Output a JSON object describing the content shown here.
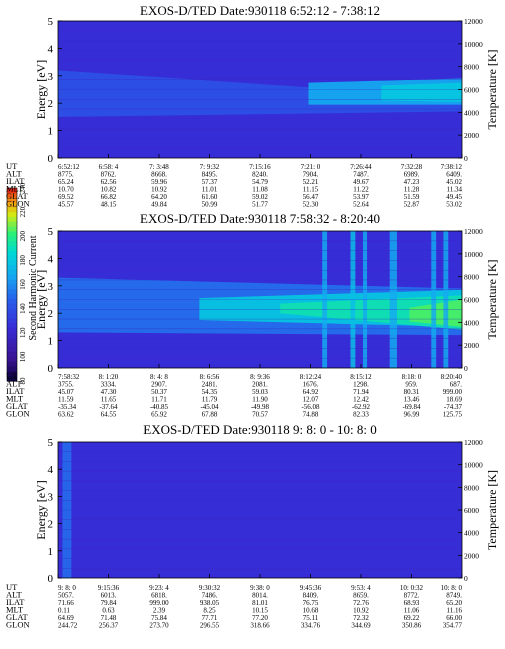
{
  "colorbar": {
    "label": "Second Harmonic Current",
    "ticks": [
      "240",
      "220",
      "200",
      "180",
      "160",
      "140",
      "120",
      "100",
      "80"
    ]
  },
  "chart_data": [
    {
      "type": "heatmap",
      "title": "EXOS-D/TED   Date:930118   6:52:12 - 7:38:12",
      "ylabel": "Energy [eV]",
      "y2label": "Temperature [K]",
      "ylim": [
        0,
        5
      ],
      "y2lim": [
        0,
        12000
      ],
      "yticks": [
        "0",
        "1",
        "2",
        "3",
        "4",
        "5"
      ],
      "y2ticks": [
        "0",
        "2000",
        "4000",
        "6000",
        "8000",
        "10000",
        "12000"
      ],
      "features": [
        {
          "kind": "band",
          "from": 0.0,
          "to": 1.0,
          "y_lo_start": 1.5,
          "y_lo_end": 1.7,
          "y_hi_start": 3.2,
          "y_hi_end": 2.2,
          "level": 0.38
        },
        {
          "kind": "band",
          "from": 0.62,
          "to": 1.0,
          "y_lo_start": 1.95,
          "y_lo_end": 1.95,
          "y_hi_start": 2.75,
          "y_hi_end": 2.9,
          "level": 0.55
        },
        {
          "kind": "band",
          "from": 0.8,
          "to": 1.0,
          "y_lo_start": 2.1,
          "y_lo_end": 2.05,
          "y_hi_start": 2.65,
          "y_hi_end": 2.75,
          "level": 0.62
        }
      ],
      "table": {
        "labels": [
          "UT",
          "ALT",
          "ILAT",
          "MLT",
          "GLAT",
          "GLON"
        ],
        "columns": [
          [
            "6:52:12",
            "8775.",
            "65.24",
            "10.70",
            "69.52",
            "45.57"
          ],
          [
            "6:58: 4",
            "8762.",
            "62.56",
            "10.82",
            "66.82",
            "48.15"
          ],
          [
            "7: 3:48",
            "8668.",
            "59.96",
            "10.92",
            "64.20",
            "49.84"
          ],
          [
            "7: 9:32",
            "8495.",
            "57.37",
            "11.01",
            "61.60",
            "50.99"
          ],
          [
            "7:15:16",
            "8240.",
            "54.79",
            "11.08",
            "59.02",
            "51.77"
          ],
          [
            "7:21: 0",
            "7904.",
            "52.21",
            "11.15",
            "56.47",
            "52.30"
          ],
          [
            "7:26:44",
            "7487.",
            "49.67",
            "11.22",
            "53.97",
            "52.64"
          ],
          [
            "7:32:28",
            "6989.",
            "47.23",
            "11.28",
            "51.59",
            "52.87"
          ],
          [
            "7:38:12",
            "6409.",
            "45.02",
            "11.34",
            "49.45",
            "53.02"
          ]
        ]
      }
    },
    {
      "type": "heatmap",
      "title": "EXOS-D/TED   Date:930118   7:58:32 - 8:20:40",
      "ylabel": "Energy [eV]",
      "y2label": "Temperature [K]",
      "ylim": [
        0,
        5
      ],
      "y2lim": [
        0,
        12000
      ],
      "yticks": [
        "0",
        "1",
        "2",
        "3",
        "4",
        "5"
      ],
      "y2ticks": [
        "0",
        "2000",
        "4000",
        "6000",
        "8000",
        "10000",
        "12000"
      ],
      "features": [
        {
          "kind": "band",
          "from": 0.0,
          "to": 1.0,
          "y_lo_start": 1.3,
          "y_lo_end": 1.2,
          "y_hi_start": 3.3,
          "y_hi_end": 2.9,
          "level": 0.45
        },
        {
          "kind": "band",
          "from": 0.35,
          "to": 1.0,
          "y_lo_start": 1.75,
          "y_lo_end": 1.5,
          "y_hi_start": 2.55,
          "y_hi_end": 2.85,
          "level": 0.62
        },
        {
          "kind": "band",
          "from": 0.55,
          "to": 1.0,
          "y_lo_start": 2.0,
          "y_lo_end": 1.4,
          "y_hi_start": 2.35,
          "y_hi_end": 2.65,
          "level": 0.7
        },
        {
          "kind": "band",
          "from": 0.87,
          "to": 1.0,
          "y_lo_start": 1.7,
          "y_lo_end": 1.5,
          "y_hi_start": 2.2,
          "y_hi_end": 2.5,
          "level": 0.78
        },
        {
          "kind": "stripe",
          "at": 0.66,
          "width": 0.012,
          "y_lo": 0.0,
          "y_hi": 5.0,
          "level": 0.55
        },
        {
          "kind": "stripe",
          "at": 0.73,
          "width": 0.012,
          "y_lo": 0.0,
          "y_hi": 5.0,
          "level": 0.6
        },
        {
          "kind": "stripe",
          "at": 0.76,
          "width": 0.01,
          "y_lo": 0.0,
          "y_hi": 5.0,
          "level": 0.55
        },
        {
          "kind": "stripe",
          "at": 0.83,
          "width": 0.018,
          "y_lo": 0.0,
          "y_hi": 5.0,
          "level": 0.55
        },
        {
          "kind": "stripe",
          "at": 0.93,
          "width": 0.012,
          "y_lo": 0.0,
          "y_hi": 5.0,
          "level": 0.55
        },
        {
          "kind": "stripe",
          "at": 0.96,
          "width": 0.012,
          "y_lo": 0.0,
          "y_hi": 5.0,
          "level": 0.55
        }
      ],
      "table": {
        "labels": [
          "UT",
          "ALT",
          "ILAT",
          "MLT",
          "GLAT",
          "GLON"
        ],
        "columns": [
          [
            "7:58:32",
            "3755.",
            "45.07",
            "11.59",
            "-35.34",
            "63.62"
          ],
          [
            "8: 1:20",
            "3334.",
            "47.30",
            "11.65",
            "-37.64",
            "64.55"
          ],
          [
            "8: 4: 8",
            "2907.",
            "50.37",
            "11.71",
            "-40.85",
            "65.92"
          ],
          [
            "8: 6:56",
            "2481.",
            "54.35",
            "11.79",
            "-45.04",
            "67.88"
          ],
          [
            "8: 9:36",
            "2081.",
            "59.03",
            "11.90",
            "-49.98",
            "70.57"
          ],
          [
            "8:12:24",
            "1676.",
            "64.92",
            "12.07",
            "-56.08",
            "74.88"
          ],
          [
            "8:15:12",
            "1298.",
            "71.94",
            "12.42",
            "-62.92",
            "82.33"
          ],
          [
            "8:18: 0",
            "959.",
            "80.31",
            "13.46",
            "-69.84",
            "96.99"
          ],
          [
            "8:20:40",
            "687.",
            "999.00",
            "18.69",
            "-74.37",
            "125.75"
          ]
        ]
      }
    },
    {
      "type": "heatmap",
      "title": "EXOS-D/TED   Date:930118   9: 8: 0 - 10: 8: 0",
      "ylabel": "Energy [eV]",
      "y2label": "Temperature [K]",
      "ylim": [
        0,
        5
      ],
      "y2lim": [
        0,
        12000
      ],
      "yticks": [
        "0",
        "1",
        "2",
        "3",
        "4",
        "5"
      ],
      "y2ticks": [
        "0",
        "2000",
        "4000",
        "6000",
        "8000",
        "10000",
        "12000"
      ],
      "features": [
        {
          "kind": "stripe",
          "at": 0.022,
          "width": 0.022,
          "y_lo": 0.0,
          "y_hi": 5.0,
          "level": 0.45
        }
      ],
      "table": {
        "labels": [
          "UT",
          "ALT",
          "ILAT",
          "MLT",
          "GLAT",
          "GLON"
        ],
        "columns": [
          [
            "9: 8: 0",
            "5057.",
            "71.66",
            "0.11",
            "64.69",
            "244.72"
          ],
          [
            "9:15:36",
            "6013.",
            "79.84",
            "0.63",
            "71.48",
            "256.37"
          ],
          [
            "9:23: 4",
            "6818.",
            "999.00",
            "2.39",
            "75.84",
            "273.70"
          ],
          [
            "9:30:32",
            "7486.",
            "938.05",
            "8.25",
            "77.71",
            "296.55"
          ],
          [
            "9:38: 0",
            "8014.",
            "81.01",
            "10.15",
            "77.20",
            "318.66"
          ],
          [
            "9:45:36",
            "8409.",
            "76.75",
            "10.68",
            "75.11",
            "334.76"
          ],
          [
            "9:53: 4",
            "8659.",
            "72.76",
            "10.92",
            "72.32",
            "344.69"
          ],
          [
            "10: 0:32",
            "8772.",
            "68.93",
            "11.06",
            "69.22",
            "350.86"
          ],
          [
            "10: 8: 0",
            "8749.",
            "65.20",
            "11.16",
            "66.00",
            "354.77"
          ]
        ]
      }
    }
  ]
}
